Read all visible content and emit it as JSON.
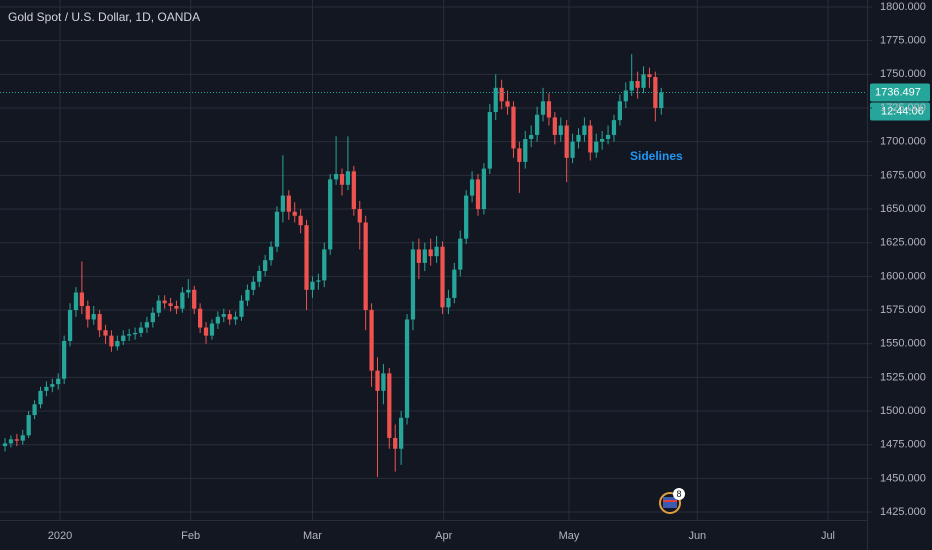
{
  "chart_data": {
    "type": "candlestick",
    "title": "Gold Spot / U.S. Dollar, 1D, OANDA",
    "open": [
      1474,
      1476,
      1479,
      1478,
      1482,
      1497,
      1505,
      1515,
      1518,
      1520,
      1524,
      1552,
      1575,
      1588,
      1578,
      1568,
      1572,
      1560,
      1556,
      1548,
      1552,
      1556,
      1557,
      1558,
      1562,
      1566,
      1573,
      1582,
      1580,
      1578,
      1576,
      1588,
      1590,
      1576,
      1562,
      1556,
      1565,
      1570,
      1572,
      1568,
      1570,
      1582,
      1590,
      1596,
      1604,
      1612,
      1622,
      1648,
      1660,
      1648,
      1645,
      1638,
      1590,
      1596,
      1597,
      1620,
      1672,
      1676,
      1668,
      1678,
      1650,
      1640,
      1575,
      1530,
      1515,
      1528,
      1480,
      1472,
      1495,
      1568,
      1620,
      1610,
      1620,
      1615,
      1622,
      1577,
      1584,
      1605,
      1628,
      1660,
      1672,
      1650,
      1680,
      1722,
      1740,
      1730,
      1726,
      1695,
      1685,
      1702,
      1705,
      1720,
      1730,
      1718,
      1705,
      1712,
      1688,
      1700,
      1705,
      1712,
      1692,
      1700,
      1702,
      1705,
      1716,
      1730,
      1738,
      1745,
      1740,
      1750,
      1748,
      1725
    ],
    "high": [
      1480,
      1482,
      1483,
      1486,
      1500,
      1508,
      1518,
      1522,
      1524,
      1528,
      1556,
      1580,
      1592,
      1611,
      1582,
      1578,
      1575,
      1564,
      1560,
      1556,
      1560,
      1561,
      1562,
      1566,
      1570,
      1577,
      1586,
      1586,
      1584,
      1582,
      1592,
      1598,
      1593,
      1580,
      1566,
      1568,
      1574,
      1576,
      1575,
      1574,
      1586,
      1594,
      1600,
      1608,
      1616,
      1626,
      1652,
      1690,
      1664,
      1655,
      1650,
      1642,
      1600,
      1602,
      1625,
      1676,
      1704,
      1680,
      1704,
      1682,
      1656,
      1645,
      1580,
      1540,
      1535,
      1532,
      1490,
      1500,
      1572,
      1626,
      1628,
      1625,
      1628,
      1630,
      1626,
      1590,
      1610,
      1634,
      1664,
      1678,
      1676,
      1684,
      1728,
      1750,
      1746,
      1738,
      1730,
      1700,
      1708,
      1712,
      1726,
      1740,
      1736,
      1722,
      1718,
      1716,
      1706,
      1710,
      1718,
      1716,
      1706,
      1708,
      1712,
      1720,
      1735,
      1744,
      1765,
      1752,
      1756,
      1755,
      1752,
      1740
    ],
    "low": [
      1470,
      1473,
      1474,
      1475,
      1480,
      1494,
      1502,
      1511,
      1514,
      1516,
      1520,
      1548,
      1570,
      1572,
      1562,
      1564,
      1555,
      1550,
      1544,
      1545,
      1549,
      1552,
      1553,
      1555,
      1558,
      1562,
      1570,
      1576,
      1574,
      1572,
      1573,
      1584,
      1572,
      1558,
      1550,
      1553,
      1561,
      1566,
      1564,
      1564,
      1567,
      1578,
      1586,
      1592,
      1600,
      1608,
      1618,
      1640,
      1642,
      1640,
      1632,
      1575,
      1584,
      1590,
      1592,
      1616,
      1668,
      1660,
      1664,
      1645,
      1620,
      1560,
      1518,
      1451,
      1505,
      1472,
      1455,
      1460,
      1490,
      1560,
      1598,
      1604,
      1608,
      1610,
      1572,
      1572,
      1580,
      1600,
      1624,
      1655,
      1645,
      1646,
      1676,
      1716,
      1724,
      1720,
      1688,
      1662,
      1680,
      1696,
      1700,
      1715,
      1712,
      1698,
      1700,
      1670,
      1684,
      1695,
      1700,
      1686,
      1688,
      1694,
      1698,
      1700,
      1712,
      1725,
      1734,
      1732,
      1736,
      1740,
      1715,
      1720
    ],
    "close": [
      1476,
      1479,
      1478,
      1482,
      1497,
      1505,
      1515,
      1518,
      1520,
      1524,
      1552,
      1575,
      1588,
      1578,
      1568,
      1572,
      1560,
      1556,
      1548,
      1552,
      1556,
      1557,
      1558,
      1562,
      1566,
      1573,
      1582,
      1580,
      1578,
      1576,
      1588,
      1590,
      1576,
      1562,
      1556,
      1565,
      1570,
      1572,
      1568,
      1570,
      1582,
      1590,
      1596,
      1604,
      1612,
      1622,
      1648,
      1660,
      1648,
      1645,
      1638,
      1590,
      1596,
      1597,
      1620,
      1672,
      1676,
      1668,
      1678,
      1650,
      1640,
      1575,
      1530,
      1515,
      1528,
      1480,
      1472,
      1495,
      1568,
      1620,
      1610,
      1620,
      1615,
      1622,
      1577,
      1584,
      1605,
      1628,
      1660,
      1672,
      1650,
      1680,
      1722,
      1740,
      1730,
      1726,
      1695,
      1685,
      1702,
      1705,
      1720,
      1730,
      1718,
      1705,
      1712,
      1688,
      1700,
      1705,
      1712,
      1692,
      1700,
      1702,
      1705,
      1716,
      1730,
      1738,
      1745,
      1740,
      1750,
      1748,
      1725,
      1736.497
    ],
    "up_color": "#26a69a",
    "down_color": "#ef5350",
    "xlim": [
      -0.85,
      145.8
    ],
    "xticks": [
      {
        "value": 9.3,
        "label": "2020"
      },
      {
        "value": 31.4,
        "label": "Feb"
      },
      {
        "value": 52,
        "label": "Mar"
      },
      {
        "value": 74.2,
        "label": "Apr"
      },
      {
        "value": 95.4,
        "label": "May"
      },
      {
        "value": 117.1,
        "label": "Jun"
      },
      {
        "value": 139.2,
        "label": "Jul"
      }
    ],
    "ylim": [
      1419.1,
      1805.2
    ],
    "yticks": [
      {
        "value": 1425,
        "label": "1425.000"
      },
      {
        "value": 1450,
        "label": "1450.000"
      },
      {
        "value": 1475,
        "label": "1475.000"
      },
      {
        "value": 1500,
        "label": "1500.000"
      },
      {
        "value": 1525,
        "label": "1525.000"
      },
      {
        "value": 1550,
        "label": "1550.000"
      },
      {
        "value": 1575,
        "label": "1575.000"
      },
      {
        "value": 1600,
        "label": "1600.000"
      },
      {
        "value": 1625,
        "label": "1625.000"
      },
      {
        "value": 1650,
        "label": "1650.000"
      },
      {
        "value": 1675,
        "label": "1675.000"
      },
      {
        "value": 1700,
        "label": "1700.000"
      },
      {
        "value": 1725,
        "label": "1725.000"
      },
      {
        "value": 1750,
        "label": "1750.000"
      },
      {
        "value": 1775,
        "label": "1775.000"
      },
      {
        "value": 1800,
        "label": "1800.000"
      }
    ],
    "grid": true,
    "countdown": "12:44:06",
    "annotation": "Sidelines",
    "event_badge": "8"
  }
}
